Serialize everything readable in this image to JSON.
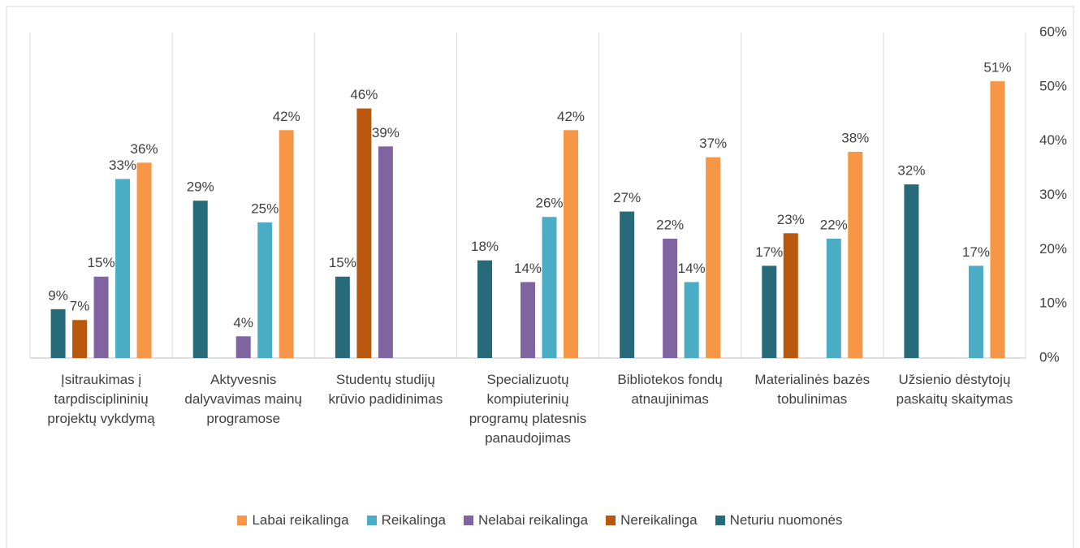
{
  "chart_data": {
    "type": "bar",
    "categories": [
      "Įsitraukimas į tarpdisciplininių projektų vykdymą",
      "Aktyvesnis dalyvavimas mainų programose",
      "Studentų studijų krūvio padidinimas",
      "Specializuotų kompiuterinių programų platesnis panaudojimas",
      "Bibliotekos fondų atnaujinimas",
      "Materialinės bazės tobulinimas",
      "Užsienio dėstytojų paskaitų skaitymas"
    ],
    "series": [
      {
        "name": "Labai reikalinga",
        "color": "#f79646",
        "values": [
          36,
          42,
          null,
          42,
          37,
          38,
          51
        ],
        "value_labels": [
          "36%",
          "42%",
          null,
          "42%",
          "37%",
          "38%",
          "51%"
        ]
      },
      {
        "name": "Reikalinga",
        "color": "#4bacc6",
        "values": [
          33,
          25,
          null,
          26,
          14,
          22,
          17
        ],
        "value_labels": [
          "33%",
          "25%",
          null,
          "26%",
          "14%",
          "22%",
          "17%"
        ]
      },
      {
        "name": "Nelabai reikalinga",
        "color": "#8064a2",
        "values": [
          15,
          4,
          39,
          14,
          22,
          null,
          null
        ],
        "value_labels": [
          "15%",
          "4%",
          "39%",
          "14%",
          "22%",
          null,
          null
        ]
      },
      {
        "name": "Nereikalinga",
        "color": "#b9570c",
        "values": [
          7,
          null,
          46,
          null,
          null,
          23,
          null
        ],
        "value_labels": [
          "7%",
          null,
          "46%",
          null,
          null,
          "23%",
          null
        ]
      },
      {
        "name": "Neturiu nuomonės",
        "color": "#276b7b",
        "values": [
          9,
          29,
          15,
          18,
          27,
          17,
          32
        ],
        "value_labels": [
          "9%",
          "29%",
          "15%",
          "18%",
          "27%",
          "17%",
          "32%"
        ]
      }
    ],
    "ylim": [
      0,
      60
    ],
    "yticks": [
      {
        "value": 0,
        "label": "0%"
      },
      {
        "value": 10,
        "label": "10%"
      },
      {
        "value": 20,
        "label": "20%"
      },
      {
        "value": 30,
        "label": "30%"
      },
      {
        "value": 40,
        "label": "40%"
      },
      {
        "value": 50,
        "label": "50%"
      },
      {
        "value": 60,
        "label": "60%"
      }
    ],
    "legend": "bottom"
  }
}
